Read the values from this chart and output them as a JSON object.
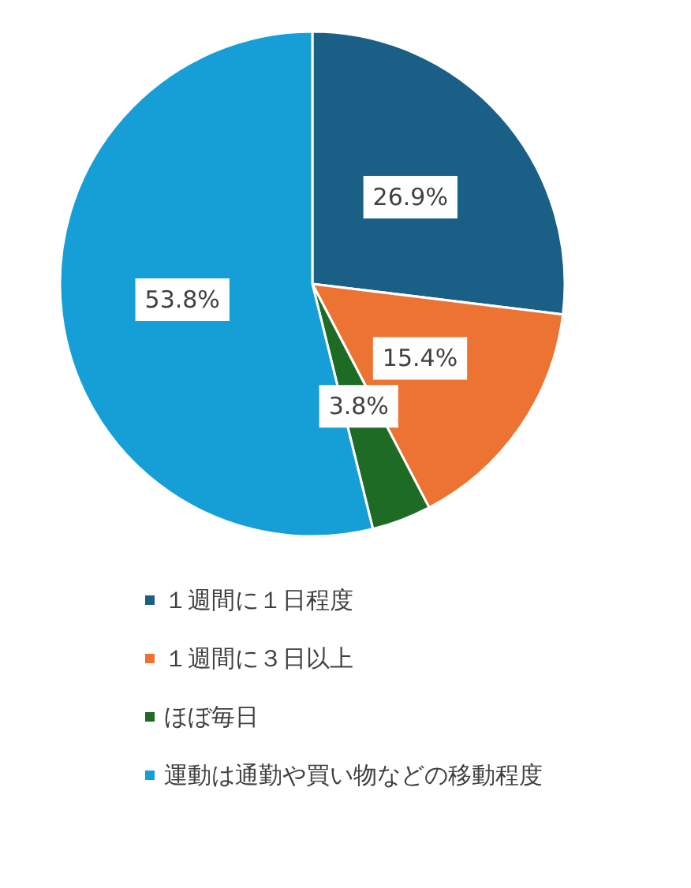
{
  "chart_data": {
    "type": "pie",
    "categories": [
      "１週間に１日程度",
      "１週間に３日以上",
      "ほぼ毎日",
      "運動は通勤や買い物などの移動程度"
    ],
    "values": [
      26.9,
      15.4,
      3.8,
      53.8
    ],
    "value_labels": [
      "26.9%",
      "15.4%",
      "3.8%",
      "53.8%"
    ],
    "colors": [
      "#1a5f85",
      "#ed7332",
      "#1e6b26",
      "#169fd6"
    ],
    "legend": "bottom"
  }
}
